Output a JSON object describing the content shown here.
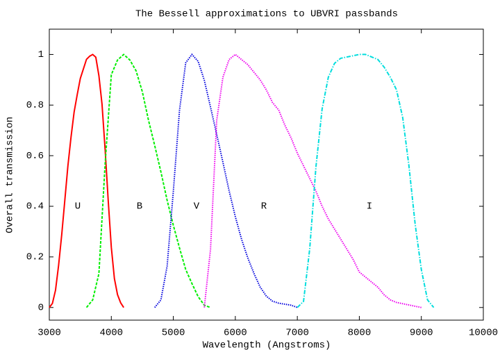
{
  "chart_data": {
    "type": "line",
    "title": "The Bessell approximations to UBVRI passbands",
    "x_label": "Wavelength (Angstroms)",
    "y_label": "Overall transmission",
    "xlim": [
      3000,
      10000
    ],
    "ylim": [
      -0.05,
      1.1
    ],
    "xticks": [
      3000,
      4000,
      5000,
      6000,
      7000,
      8000,
      9000,
      10000
    ],
    "yticks": [
      0,
      0.2,
      0.4,
      0.6,
      0.8,
      1
    ],
    "series": [
      {
        "name": "U",
        "color": "#ff0000",
        "style": "solid",
        "x": [
          3000,
          3050,
          3100,
          3150,
          3200,
          3250,
          3300,
          3350,
          3400,
          3450,
          3500,
          3550,
          3600,
          3650,
          3700,
          3750,
          3800,
          3850,
          3900,
          3950,
          4000,
          4050,
          4100,
          4150,
          4200
        ],
        "values": [
          0,
          0.016,
          0.068,
          0.167,
          0.287,
          0.423,
          0.56,
          0.673,
          0.772,
          0.841,
          0.905,
          0.943,
          0.981,
          0.993,
          1.0,
          0.989,
          0.916,
          0.804,
          0.625,
          0.423,
          0.238,
          0.114,
          0.051,
          0.019,
          0
        ]
      },
      {
        "name": "B",
        "color": "#00ee00",
        "style": "dashed",
        "x": [
          3600,
          3700,
          3800,
          3900,
          4000,
          4100,
          4200,
          4300,
          4400,
          4500,
          4600,
          4700,
          4800,
          4900,
          5000,
          5100,
          5200,
          5300,
          5400,
          5500,
          5600
        ],
        "values": [
          0,
          0.03,
          0.134,
          0.567,
          0.92,
          0.978,
          1.0,
          0.978,
          0.935,
          0.853,
          0.74,
          0.64,
          0.536,
          0.424,
          0.325,
          0.235,
          0.15,
          0.095,
          0.043,
          0.009,
          0
        ]
      },
      {
        "name": "V",
        "color": "#0000dd",
        "style": "dotted",
        "x": [
          4700,
          4800,
          4900,
          5000,
          5100,
          5200,
          5300,
          5400,
          5500,
          5600,
          5700,
          5800,
          5900,
          6000,
          6100,
          6200,
          6300,
          6400,
          6500,
          6600,
          6700,
          6800,
          6900,
          7000
        ],
        "values": [
          0,
          0.03,
          0.163,
          0.458,
          0.78,
          0.967,
          1.0,
          0.973,
          0.898,
          0.792,
          0.684,
          0.574,
          0.461,
          0.359,
          0.27,
          0.197,
          0.135,
          0.081,
          0.045,
          0.025,
          0.017,
          0.013,
          0.009,
          0
        ]
      },
      {
        "name": "R",
        "color": "#ee00ee",
        "style": "dotted",
        "x": [
          5500,
          5600,
          5700,
          5800,
          5900,
          6000,
          6100,
          6200,
          6300,
          6400,
          6500,
          6600,
          6700,
          6800,
          6900,
          7000,
          7100,
          7200,
          7300,
          7400,
          7500,
          7600,
          7700,
          7800,
          7900,
          8000,
          8100,
          8200,
          8300,
          8400,
          8500,
          8600,
          8700,
          8800,
          8900,
          9000
        ],
        "values": [
          0,
          0.23,
          0.74,
          0.91,
          0.98,
          1.0,
          0.98,
          0.96,
          0.93,
          0.9,
          0.86,
          0.81,
          0.78,
          0.72,
          0.67,
          0.61,
          0.56,
          0.51,
          0.46,
          0.4,
          0.35,
          0.31,
          0.27,
          0.23,
          0.19,
          0.14,
          0.12,
          0.1,
          0.08,
          0.05,
          0.03,
          0.02,
          0.015,
          0.01,
          0.005,
          0
        ]
      },
      {
        "name": "I",
        "color": "#00dddd",
        "style": "dashdot",
        "x": [
          7000,
          7100,
          7200,
          7300,
          7400,
          7500,
          7600,
          7700,
          7800,
          7900,
          8000,
          8100,
          8200,
          8300,
          8400,
          8500,
          8600,
          8700,
          8800,
          8900,
          9000,
          9100,
          9200
        ],
        "values": [
          0,
          0.024,
          0.232,
          0.555,
          0.785,
          0.91,
          0.965,
          0.985,
          0.99,
          0.995,
          1.0,
          1.0,
          0.99,
          0.98,
          0.95,
          0.91,
          0.86,
          0.75,
          0.56,
          0.33,
          0.15,
          0.03,
          0
        ]
      }
    ]
  }
}
